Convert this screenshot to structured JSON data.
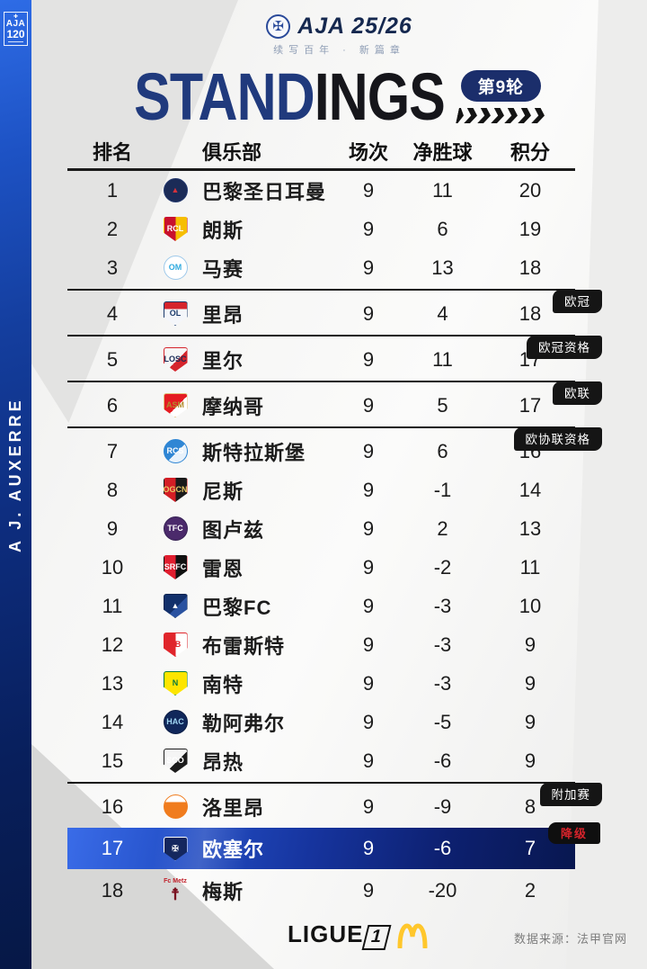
{
  "sidebar": {
    "badge_line1": "AJA",
    "badge_line2": "120",
    "vertical_text": "A J. AUXERRE"
  },
  "header": {
    "season_title": "AJA 25/26",
    "subtitle": "续写百年 · 新篇章",
    "title_blue": "STAND",
    "title_black": "INGS",
    "round_badge": "第9轮"
  },
  "table": {
    "columns": [
      "排名",
      "俱乐部",
      "场次",
      "净胜球",
      "积分"
    ],
    "rows": [
      {
        "rank": "1",
        "club": "巴黎圣日耳曼",
        "played": "9",
        "gd": "11",
        "pts": "20",
        "logo": {
          "name": "psg",
          "shape": "circle",
          "c1": "#1b2b57",
          "c2": "#1b2b57",
          "split": "none",
          "mono": "▲",
          "mono_color": "#d4323c",
          "border": "#23386e"
        }
      },
      {
        "rank": "2",
        "club": "朗斯",
        "played": "9",
        "gd": "6",
        "pts": "19",
        "logo": {
          "name": "lens",
          "shape": "shield",
          "c1": "#c8102e",
          "c2": "#f6be00",
          "split": "v",
          "mono": "RCL",
          "mono_color": "#ffffff"
        }
      },
      {
        "rank": "3",
        "club": "马赛",
        "played": "9",
        "gd": "13",
        "pts": "18",
        "divider_label": "欧冠",
        "logo": {
          "name": "marseille",
          "shape": "circle",
          "c1": "#ffffff",
          "c2": "#ffffff",
          "split": "none",
          "mono": "OM",
          "mono_color": "#2faadf",
          "border": "#9ec9ea"
        }
      },
      {
        "rank": "4",
        "club": "里昂",
        "played": "9",
        "gd": "4",
        "pts": "18",
        "divider_label": "欧冠资格",
        "logo": {
          "name": "lyon",
          "shape": "shield",
          "c1": "#f4f6fa",
          "c2": "#d5242c",
          "split": "h",
          "mono": "OL",
          "mono_color": "#1b3a6b",
          "border": "#1b3a6b"
        }
      },
      {
        "rank": "5",
        "club": "里尔",
        "played": "9",
        "gd": "11",
        "pts": "17",
        "divider_label": "欧联",
        "logo": {
          "name": "lille",
          "shape": "shield",
          "c1": "#f6f6f6",
          "c2": "#d5242c",
          "split": "d",
          "mono": "LOSC",
          "mono_color": "#1b2b57",
          "border": "#d5242c"
        }
      },
      {
        "rank": "6",
        "club": "摩纳哥",
        "played": "9",
        "gd": "5",
        "pts": "17",
        "divider_label": "欧协联资格",
        "logo": {
          "name": "monaco",
          "shape": "shield",
          "c1": "#e51b22",
          "c2": "#ffffff",
          "split": "d",
          "mono": "ASM",
          "mono_color": "#b38b2d",
          "border": "#e0c07a"
        }
      },
      {
        "rank": "7",
        "club": "斯特拉斯堡",
        "played": "9",
        "gd": "6",
        "pts": "16",
        "logo": {
          "name": "strasbourg",
          "shape": "circle",
          "c1": "#2f86d4",
          "c2": "#e8f2fb",
          "split": "d",
          "mono": "RCS",
          "mono_color": "#ffffff",
          "border": "#2f86d4"
        }
      },
      {
        "rank": "8",
        "club": "尼斯",
        "played": "9",
        "gd": "-1",
        "pts": "14",
        "logo": {
          "name": "nice",
          "shape": "shield",
          "c1": "#d31e25",
          "c2": "#1a1a1a",
          "split": "v",
          "mono": "OGCN",
          "mono_color": "#e8c766"
        }
      },
      {
        "rank": "9",
        "club": "图卢兹",
        "played": "9",
        "gd": "2",
        "pts": "13",
        "logo": {
          "name": "toulouse",
          "shape": "circle",
          "c1": "#4b2a6b",
          "c2": "#4b2a6b",
          "split": "none",
          "mono": "TFC",
          "mono_color": "#ffffff",
          "border": "#342052"
        }
      },
      {
        "rank": "10",
        "club": "雷恩",
        "played": "9",
        "gd": "-2",
        "pts": "11",
        "logo": {
          "name": "rennes",
          "shape": "shield",
          "c1": "#e01e2f",
          "c2": "#111111",
          "split": "v",
          "mono": "SRFC",
          "mono_color": "#ffffff"
        }
      },
      {
        "rank": "11",
        "club": "巴黎FC",
        "played": "9",
        "gd": "-3",
        "pts": "10",
        "logo": {
          "name": "paris-fc",
          "shape": "shield",
          "c1": "#12306b",
          "c2": "#2a52a0",
          "split": "d",
          "mono": "▲",
          "mono_color": "#ffffff",
          "border": "#0c2450"
        }
      },
      {
        "rank": "12",
        "club": "布雷斯特",
        "played": "9",
        "gd": "-3",
        "pts": "9",
        "logo": {
          "name": "brest",
          "shape": "shield",
          "c1": "#e0252b",
          "c2": "#ffffff",
          "split": "v",
          "mono": "SB",
          "mono_color": "#e0252b",
          "border": "#e0252b"
        }
      },
      {
        "rank": "13",
        "club": "南特",
        "played": "9",
        "gd": "-3",
        "pts": "9",
        "logo": {
          "name": "nantes",
          "shape": "shield",
          "c1": "#fde500",
          "c2": "#fde500",
          "split": "none",
          "mono": "N",
          "mono_color": "#0a7a3c",
          "border": "#0a7a3c"
        }
      },
      {
        "rank": "14",
        "club": "勒阿弗尔",
        "played": "9",
        "gd": "-5",
        "pts": "9",
        "logo": {
          "name": "le-havre",
          "shape": "circle",
          "c1": "#10275a",
          "c2": "#10275a",
          "split": "none",
          "mono": "HAC",
          "mono_color": "#9fd5f2",
          "border": "#0a1c44"
        }
      },
      {
        "rank": "15",
        "club": "昂热",
        "played": "9",
        "gd": "-6",
        "pts": "9",
        "divider_label": "附加赛",
        "logo": {
          "name": "angers",
          "shape": "shield",
          "c1": "#f5f5f5",
          "c2": "#1c1c1c",
          "split": "d",
          "mono": "SCO",
          "mono_color": "#ffffff",
          "border": "#1c1c1c"
        }
      },
      {
        "rank": "16",
        "club": "洛里昂",
        "played": "9",
        "gd": "-9",
        "pts": "8",
        "logo": {
          "name": "lorient",
          "shape": "circle",
          "c1": "#f07c1e",
          "c2": "#ffffff",
          "split": "h",
          "mono": "FCL",
          "mono_color": "#f07c1e",
          "border": "#f07c1e"
        }
      },
      {
        "rank": "17",
        "club": "欧塞尔",
        "played": "9",
        "gd": "-6",
        "pts": "7",
        "highlight": true,
        "corner_label": "降级",
        "logo": {
          "name": "auxerre",
          "shape": "shield",
          "c1": "#14275e",
          "c2": "#14275e",
          "split": "none",
          "mono": "✠",
          "mono_color": "#ffffff",
          "border": "#ffffff"
        }
      },
      {
        "rank": "18",
        "club": "梅斯",
        "played": "9",
        "gd": "-20",
        "pts": "2",
        "logo": {
          "name": "metz",
          "shape": "plain",
          "c1": "transparent",
          "c2": "transparent",
          "split": "none",
          "mono": "☨",
          "mono_color": "#7a1221",
          "top_label": "Fc Metz"
        }
      }
    ]
  },
  "footer": {
    "league_word": "LIGUE",
    "league_one": "1",
    "mcdonalds_icon": "golden-arches",
    "source": "数据来源：法甲官网"
  },
  "colors": {
    "sidebar_blue": "#143e9e",
    "title_blue": "#203a7d",
    "title_black": "#16161b",
    "round_badge_bg": "#1b2e6b",
    "highlight_row_start": "#3a6ce8",
    "highlight_row_end": "#081750",
    "qual_badge_bg": "#151515",
    "relegation_red": "#d6232b",
    "mcdonalds_gold": "#FFC72C"
  }
}
